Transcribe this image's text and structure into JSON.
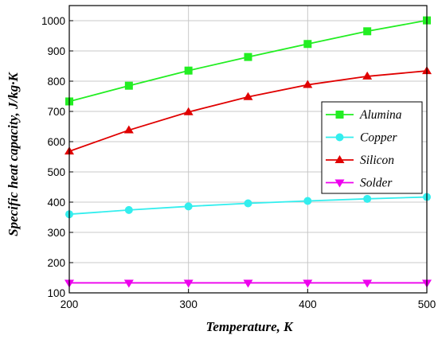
{
  "chart_data": {
    "type": "line",
    "xlabel": "Temperature, K",
    "ylabel": "Specific heat capacity, J/kg·K",
    "xlim": [
      200,
      500
    ],
    "ylim": [
      100,
      1050
    ],
    "xticks": [
      200,
      300,
      400,
      500
    ],
    "yticks": [
      100,
      200,
      300,
      400,
      500,
      600,
      700,
      800,
      900,
      1000
    ],
    "grid": true,
    "legend_position": "right",
    "x": [
      200,
      250,
      300,
      350,
      400,
      450,
      500
    ],
    "series": [
      {
        "name": "Alumina",
        "color": "#22ee22",
        "marker": "square",
        "values": [
          733,
          785,
          835,
          880,
          923,
          965,
          1001
        ]
      },
      {
        "name": "Copper",
        "color": "#33eeee",
        "marker": "circle",
        "values": [
          360,
          374,
          386,
          396,
          404,
          411,
          417
        ]
      },
      {
        "name": "Silicon",
        "color": "#e00000",
        "marker": "triangle-up",
        "values": [
          568,
          638,
          698,
          748,
          788,
          816,
          834
        ]
      },
      {
        "name": "Solder",
        "color": "#ee00ee",
        "marker": "triangle-down",
        "values": [
          133,
          133,
          133,
          133,
          133,
          133,
          133
        ]
      }
    ]
  }
}
